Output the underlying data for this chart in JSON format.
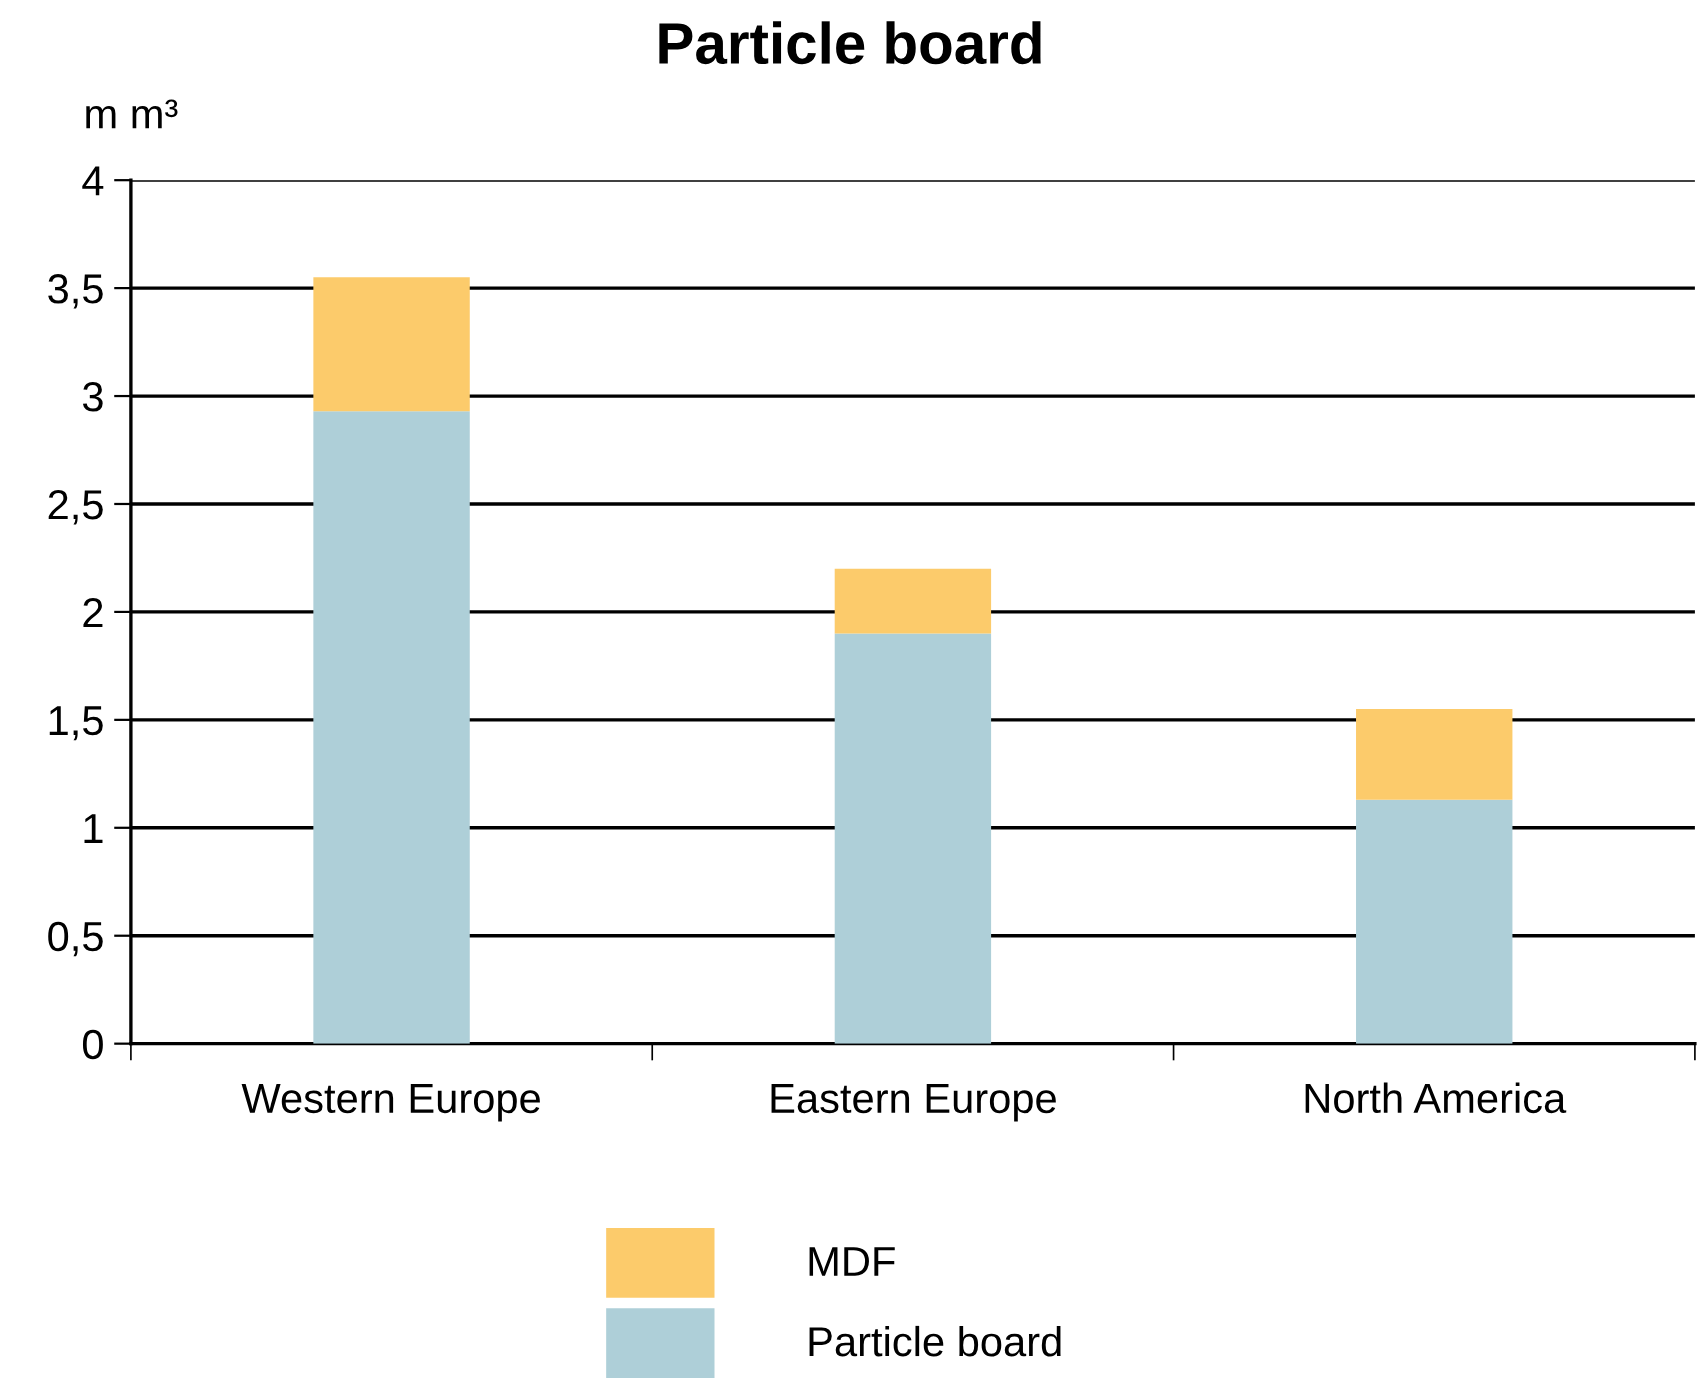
{
  "chart_data": {
    "type": "bar",
    "title": "Particle board",
    "ylabel": "m m³",
    "stacked": true,
    "categories": [
      "Western Europe",
      "Eastern Europe",
      "North America"
    ],
    "series": [
      {
        "name": "Particle board",
        "color": "#aecfd8",
        "values": [
          2.93,
          1.9,
          1.13
        ]
      },
      {
        "name": "MDF",
        "color": "#fccb6b",
        "values": [
          0.62,
          0.3,
          0.42
        ]
      }
    ],
    "ylim": [
      0,
      4
    ],
    "yticks": [
      0,
      {
        "value": 0.5,
        "label": "0,5"
      },
      1,
      {
        "value": 1.5,
        "label": "1,5"
      },
      2,
      {
        "value": 2.5,
        "label": "2,5"
      },
      3,
      {
        "value": 3.5,
        "label": "3,5"
      },
      4
    ],
    "grid": "y",
    "legend": "bottom"
  }
}
